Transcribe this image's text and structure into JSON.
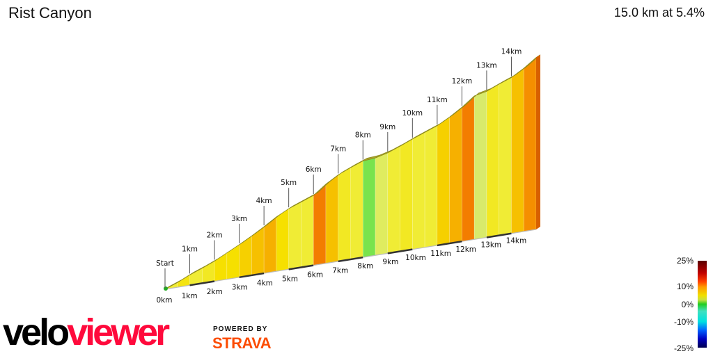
{
  "header": {
    "title": "Rist Canyon",
    "summary": "15.0 km at 5.4%"
  },
  "chart_data": {
    "type": "area",
    "title": "Rist Canyon",
    "distance_km": 15.0,
    "average_gradient_pct": 5.4,
    "segment_length_km": 0.5,
    "gradients_pct": [
      4.5,
      5.5,
      4.5,
      5,
      6,
      6,
      6.5,
      7,
      7.5,
      6,
      4.5,
      4.5,
      9,
      7,
      5,
      4.5,
      1,
      3,
      4.5,
      5,
      4.5,
      4.5,
      6.5,
      7.5,
      9,
      2.5,
      5,
      4.5,
      7,
      8.5
    ],
    "start_label": "Start",
    "top_marker_labels": [
      "1km",
      "2km",
      "3km",
      "4km",
      "5km",
      "6km",
      "7km",
      "8km",
      "9km",
      "10km",
      "11km",
      "12km",
      "13km",
      "14km"
    ],
    "axis_tick_labels": [
      "0km",
      "1km",
      "2km",
      "3km",
      "4km",
      "5km",
      "6km",
      "7km",
      "8km",
      "9km",
      "10km",
      "11km",
      "12km",
      "13km",
      "14km"
    ],
    "legend": {
      "labels": [
        "25%",
        "10%",
        "0%",
        "-10%",
        "-25%"
      ],
      "colors": [
        "#5a0000",
        "#c00000",
        "#ff9900",
        "#f0e000",
        "#20cc20",
        "#00e0e0",
        "#0000c0",
        "#000050"
      ]
    }
  },
  "branding": {
    "logo_part1": "velo",
    "logo_part2": "viewer",
    "powered_by": "POWERED BY",
    "strava": "STRAVA"
  },
  "colors": {
    "viewer_red": "#ff0a3c",
    "strava_orange": "#fc4c02"
  }
}
